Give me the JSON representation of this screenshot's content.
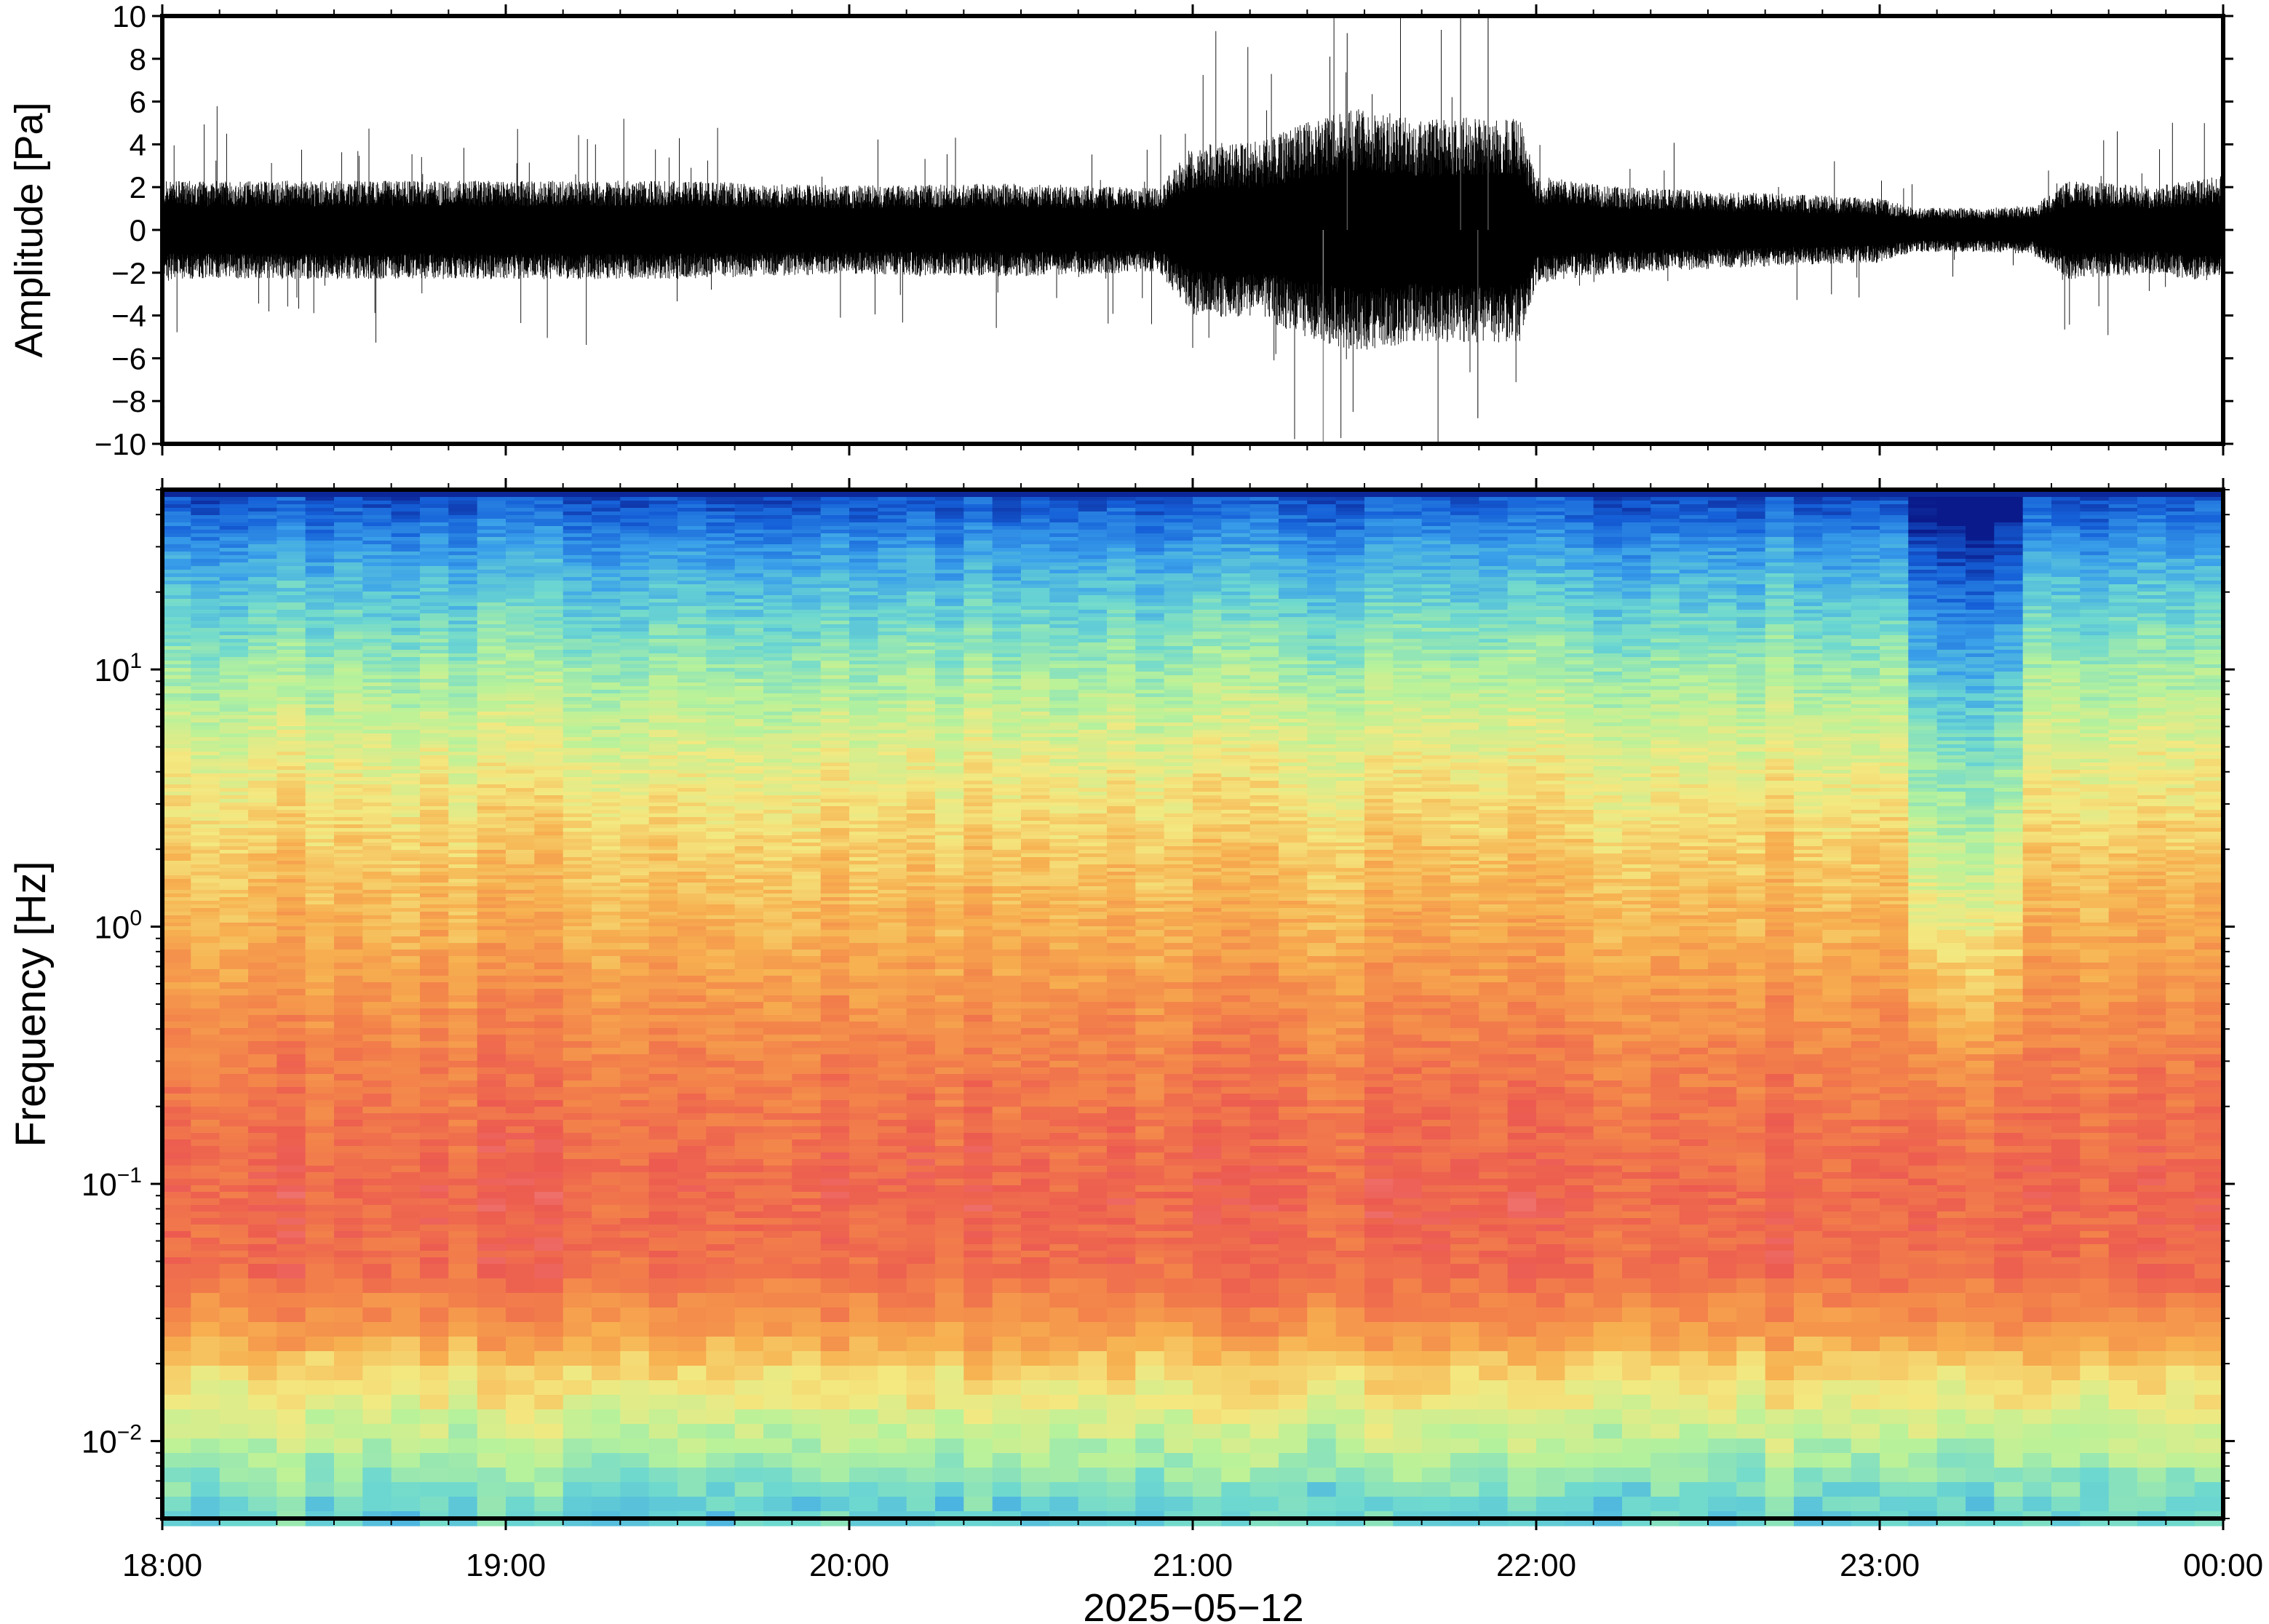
{
  "chart_data": [
    {
      "type": "line",
      "panel": "waveform",
      "ylabel": "Amplitude [Pa]",
      "ylim": [
        -10,
        10
      ],
      "yticks": [
        -10,
        -8,
        -6,
        -4,
        -2,
        0,
        2,
        4,
        6,
        8,
        10
      ],
      "ytick_labels": [
        "−10",
        "−8",
        "−6",
        "−4",
        "−2",
        "0",
        "2",
        "4",
        "6",
        "8",
        "10"
      ],
      "x_range": [
        "18:00",
        "00:00"
      ],
      "line_color": "#000000",
      "envelope": {
        "x_hours": [
          18.0,
          18.5,
          19.0,
          19.5,
          20.0,
          20.5,
          20.9,
          21.0,
          21.2,
          21.35,
          21.5,
          21.65,
          21.8,
          21.95,
          22.0,
          22.2,
          22.5,
          23.0,
          23.1,
          23.3,
          23.45,
          23.55,
          23.8,
          24.0
        ],
        "amp_pa": [
          2.0,
          2.0,
          2.0,
          2.0,
          1.8,
          1.9,
          1.7,
          3.5,
          3.6,
          4.5,
          5.0,
          4.5,
          4.6,
          4.6,
          2.2,
          1.8,
          1.6,
          1.3,
          0.9,
          0.9,
          1.0,
          2.0,
          1.8,
          2.2
        ]
      },
      "peaks": [
        {
          "x_hours": 21.38,
          "y": -10
        },
        {
          "x_hours": 21.45,
          "y": 9.2
        },
        {
          "x_hours": 21.78,
          "y": 10
        },
        {
          "x_hours": 21.83,
          "y": -8.8
        },
        {
          "x_hours": 21.86,
          "y": 10
        }
      ]
    },
    {
      "type": "heatmap",
      "panel": "spectrogram",
      "ylabel": "Frequency [Hz]",
      "xlabel": "2025−05−12",
      "y_scale": "log",
      "ylim": [
        0.005,
        50
      ],
      "ytick_labels": [
        {
          "base": "10",
          "exp": "−2"
        },
        {
          "base": "10",
          "exp": "−1"
        },
        {
          "base": "10",
          "exp": "0"
        },
        {
          "base": "10",
          "exp": "1"
        }
      ],
      "x_ticks": [
        "18:00",
        "19:00",
        "20:00",
        "21:00",
        "22:00",
        "23:00",
        "00:00"
      ],
      "colormap": [
        "#0a1a8a",
        "#1560d8",
        "#3aa0ea",
        "#6dd8d0",
        "#b8f29a",
        "#f4e880",
        "#f7b050",
        "#f3844a",
        "#ec5a50",
        "#f49aa0"
      ],
      "band_levels": [
        {
          "freq_hz": 45,
          "level": 0.1
        },
        {
          "freq_hz": 30,
          "level": 0.22
        },
        {
          "freq_hz": 20,
          "level": 0.3
        },
        {
          "freq_hz": 10,
          "level": 0.42
        },
        {
          "freq_hz": 5,
          "level": 0.52
        },
        {
          "freq_hz": 2,
          "level": 0.62
        },
        {
          "freq_hz": 1,
          "level": 0.68
        },
        {
          "freq_hz": 0.3,
          "level": 0.8
        },
        {
          "freq_hz": 0.1,
          "level": 0.86
        },
        {
          "freq_hz": 0.05,
          "level": 0.84
        },
        {
          "freq_hz": 0.03,
          "level": 0.74
        },
        {
          "freq_hz": 0.02,
          "level": 0.6
        },
        {
          "freq_hz": 0.01,
          "level": 0.45
        },
        {
          "freq_hz": 0.006,
          "level": 0.33
        }
      ],
      "quiet_window": {
        "x_hours": [
          23.05,
          23.45
        ],
        "level_offset": -0.14
      }
    }
  ]
}
